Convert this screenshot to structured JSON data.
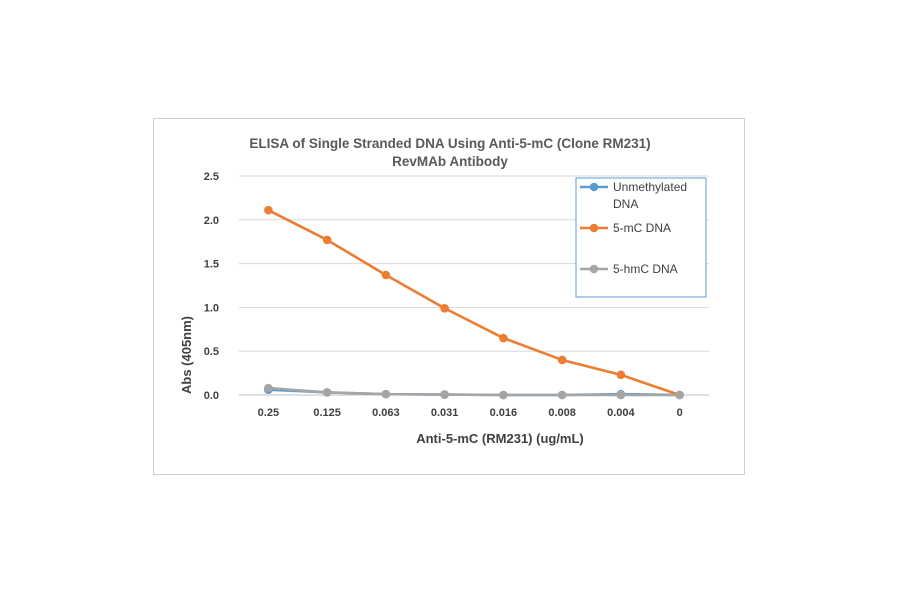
{
  "chart_data": {
    "type": "line",
    "title": [
      "ELISA of Single Stranded DNA Using Anti-5-mC (Clone RM231)",
      "RevMAb Antibody"
    ],
    "xlabel": "Anti-5-mC (RM231) (ug/mL)",
    "ylabel": "Abs (405nm)",
    "categories": [
      "0.25",
      "0.125",
      "0.063",
      "0.031",
      "0.016",
      "0.008",
      "0.004",
      "0"
    ],
    "ylim": [
      0,
      2.5
    ],
    "yticks": [
      "0.0",
      "0.5",
      "1.0",
      "1.5",
      "2.0",
      "2.5"
    ],
    "grid": true,
    "legend_position": "top-right",
    "series": [
      {
        "name": "Unmethylated DNA",
        "legend_lines": [
          "Unmethylated",
          "DNA"
        ],
        "color": "#5b9bd5",
        "values": [
          0.06,
          0.03,
          0.01,
          0.005,
          0.0,
          0.0,
          0.01,
          0.0
        ]
      },
      {
        "name": "5-mC DNA",
        "legend_lines": [
          "5-mC DNA"
        ],
        "color": "#ed7d31",
        "values": [
          2.11,
          1.77,
          1.37,
          0.99,
          0.65,
          0.4,
          0.23,
          0.0
        ]
      },
      {
        "name": "5-hmC DNA",
        "legend_lines": [
          "5-hmC DNA"
        ],
        "color": "#a5a5a5",
        "values": [
          0.08,
          0.03,
          0.01,
          0.005,
          0.0,
          0.0,
          0.0,
          0.0
        ]
      }
    ]
  }
}
